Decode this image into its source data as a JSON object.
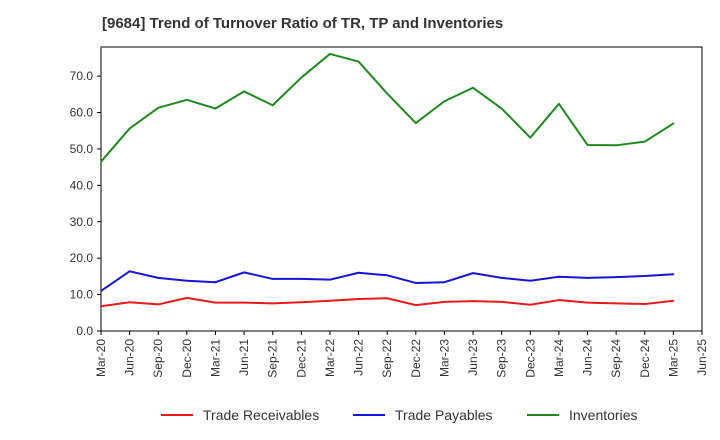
{
  "chart_data": {
    "type": "line",
    "title": "[9684]  Trend of Turnover Ratio of TR, TP and Inventories",
    "xlabel": "",
    "ylabel": "",
    "ylim": [
      0,
      78
    ],
    "yticks": [
      "0.0",
      "10.0",
      "20.0",
      "30.0",
      "40.0",
      "50.0",
      "60.0",
      "70.0"
    ],
    "ytick_values": [
      0,
      10,
      20,
      30,
      40,
      50,
      60,
      70
    ],
    "categories": [
      "Mar-20",
      "Jun-20",
      "Sep-20",
      "Dec-20",
      "Mar-21",
      "Jun-21",
      "Sep-21",
      "Dec-21",
      "Mar-22",
      "Jun-22",
      "Sep-22",
      "Dec-22",
      "Mar-23",
      "Jun-23",
      "Sep-23",
      "Dec-23",
      "Mar-24",
      "Jun-24",
      "Sep-24",
      "Dec-24",
      "Mar-25",
      "Jun-25"
    ],
    "grid": true,
    "legend_position": "bottom",
    "series": [
      {
        "name": "Trade Receivables",
        "color": "#e8191a",
        "values": [
          6.8,
          7.9,
          7.3,
          9.1,
          7.8,
          7.8,
          7.6,
          7.9,
          8.3,
          8.8,
          9.0,
          7.1,
          8.0,
          8.2,
          8.0,
          7.2,
          8.5,
          7.8,
          7.6,
          7.4,
          8.3,
          null
        ]
      },
      {
        "name": "Trade Payables",
        "color": "#1515d6",
        "values": [
          11.0,
          16.4,
          14.6,
          13.8,
          13.4,
          16.1,
          14.3,
          14.3,
          14.1,
          16.0,
          15.3,
          13.2,
          13.4,
          15.9,
          14.6,
          13.8,
          14.9,
          14.6,
          14.8,
          15.1,
          15.6,
          null
        ]
      },
      {
        "name": "Inventories",
        "color": "#1e8a1e",
        "values": [
          46.5,
          55.6,
          61.3,
          63.5,
          61.1,
          65.8,
          62.0,
          69.6,
          76.1,
          74.0,
          65.2,
          57.1,
          63.1,
          66.8,
          61.1,
          53.1,
          62.4,
          51.1,
          51.0,
          52.0,
          57.0,
          null
        ]
      }
    ]
  }
}
